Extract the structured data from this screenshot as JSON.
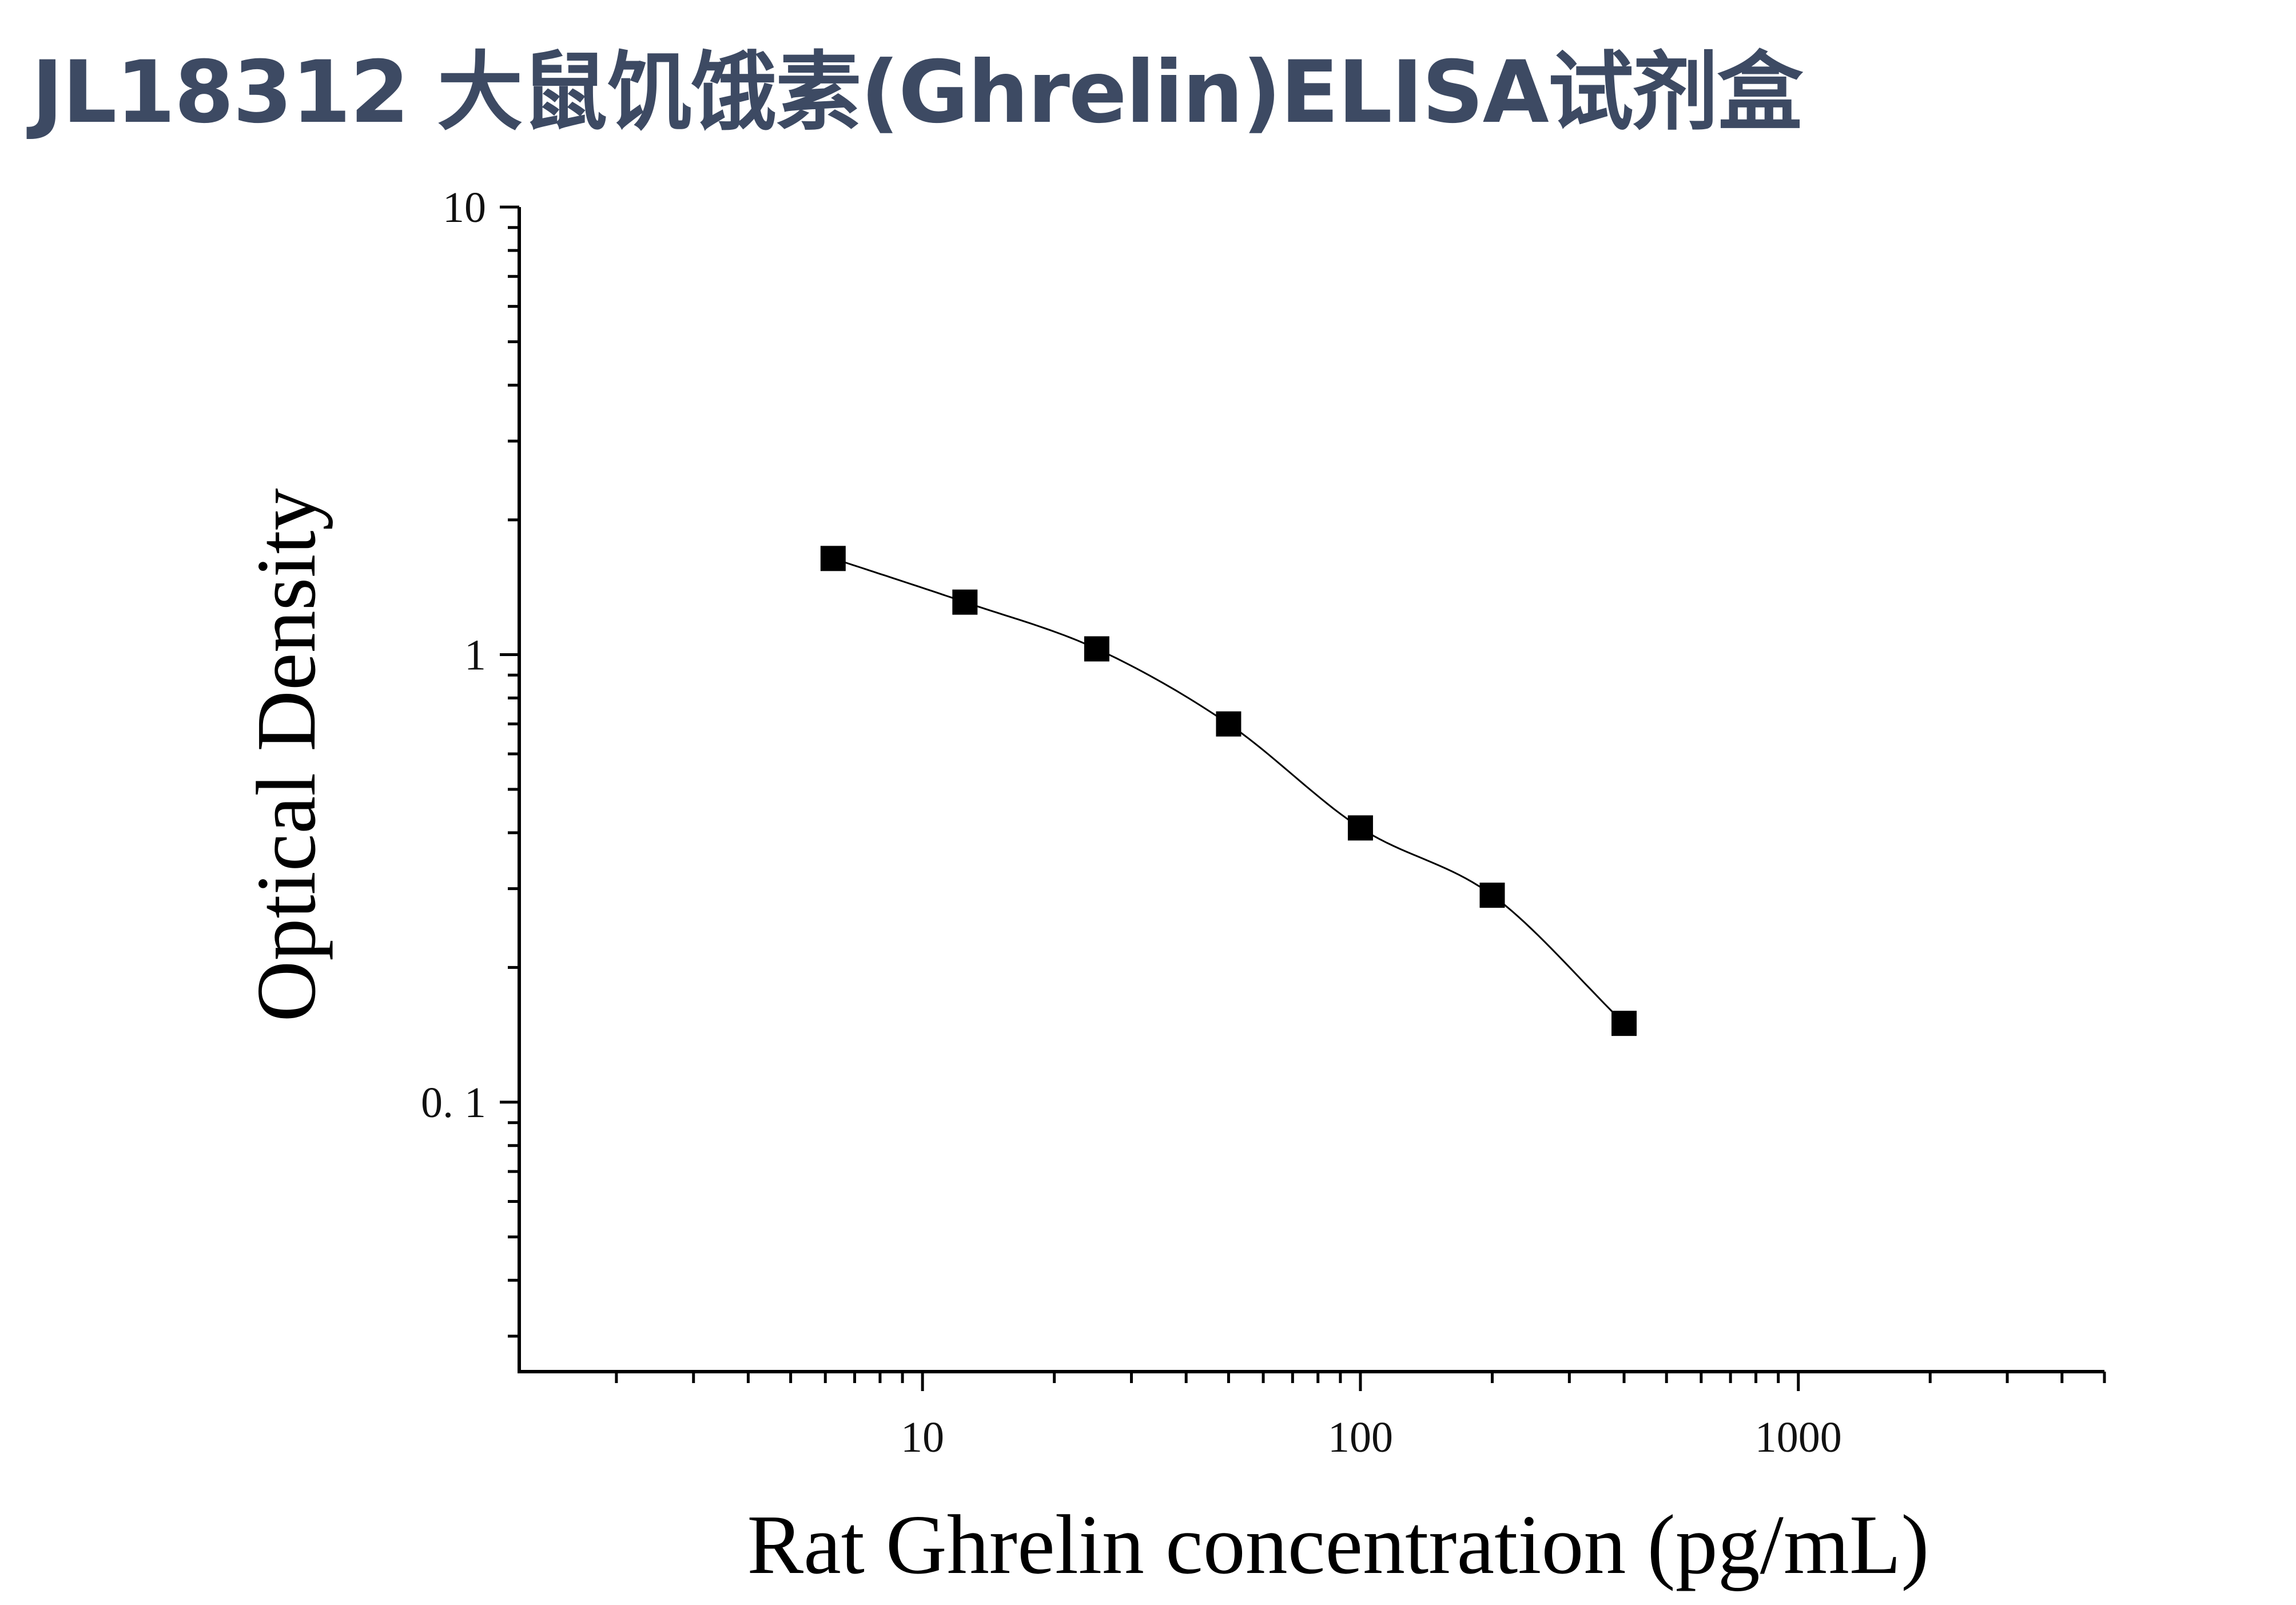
{
  "title": "JL18312 大鼠饥饿素(Ghrelin)ELISA试剂盒",
  "colors": {
    "title": "#3d4a63",
    "axis": "#000000",
    "marker": "#000000"
  },
  "chart_data": {
    "type": "scatter",
    "title": "",
    "xlabel": "Rat Ghrelin concentration (pg/mL)",
    "ylabel": "Optical Density",
    "x_scale": "log",
    "y_scale": "log",
    "xlim": [
      1.2,
      5000
    ],
    "ylim": [
      0.025,
      10
    ],
    "x_ticks": [
      10,
      100,
      1000
    ],
    "x_tick_labels": [
      "10",
      "100",
      "1000"
    ],
    "y_ticks": [
      0.1,
      1,
      10
    ],
    "y_tick_labels": [
      "0. 1",
      "1",
      "10"
    ],
    "grid": false,
    "legend": "none",
    "series": [
      {
        "marker": "square",
        "fit_line": true,
        "x": [
          6.25,
          12.5,
          25,
          50,
          100,
          200,
          400
        ],
        "y": [
          1.64,
          1.31,
          1.03,
          0.7,
          0.41,
          0.29,
          0.15
        ]
      }
    ]
  }
}
